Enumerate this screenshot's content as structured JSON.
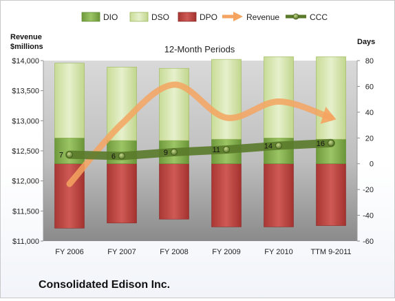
{
  "company": "Consolidated Edison Inc.",
  "chart_data": {
    "type": "bar",
    "title": "12-Month Periods",
    "categories": [
      "FY 2006",
      "FY 2007",
      "FY 2008",
      "FY 2009",
      "FY 2010",
      "TTM 9-2011"
    ],
    "left_axis": {
      "label_line1": "Revenue",
      "label_line2": "$millions",
      "range": [
        11000,
        14000
      ],
      "ticks": [
        11000,
        11500,
        12000,
        12500,
        13000,
        13500,
        14000
      ],
      "tick_labels": [
        "$11,000",
        "$11,500",
        "$12,000",
        "$12,500",
        "$13,000",
        "$13,500",
        "$14,000"
      ]
    },
    "right_axis": {
      "label": "Days",
      "range": [
        -60,
        80
      ],
      "ticks": [
        -60,
        -40,
        -20,
        0,
        20,
        40,
        60,
        80
      ],
      "tick_labels": [
        "-60",
        "-40",
        "-20",
        "0",
        "20",
        "40",
        "60",
        "80"
      ]
    },
    "legend_position": "top",
    "series": [
      {
        "name": "DIO",
        "kind": "stacked-bar",
        "axis": "right",
        "color": "#8db85a",
        "values": [
          20,
          18,
          18,
          19,
          20,
          19
        ]
      },
      {
        "name": "DSO",
        "kind": "stacked-bar",
        "axis": "right",
        "color": "#d9e8b5",
        "values": [
          58,
          57,
          56,
          62,
          63,
          64
        ]
      },
      {
        "name": "DPO",
        "kind": "negative-bar",
        "axis": "right",
        "color": "#c0504d",
        "values": [
          -50,
          -46,
          -43,
          -49,
          -49,
          -48
        ]
      },
      {
        "name": "Revenue",
        "kind": "smooth-arrow-line",
        "axis": "left",
        "color": "#f4a460",
        "values": [
          11950,
          12950,
          13600,
          13050,
          13320,
          13050
        ]
      },
      {
        "name": "CCC",
        "kind": "line-markers",
        "axis": "right",
        "color": "#5a7a2a",
        "values": [
          7,
          6,
          9,
          11,
          14,
          16
        ],
        "labels": [
          "7",
          "6",
          "9",
          "11",
          "14",
          "16"
        ]
      }
    ]
  }
}
